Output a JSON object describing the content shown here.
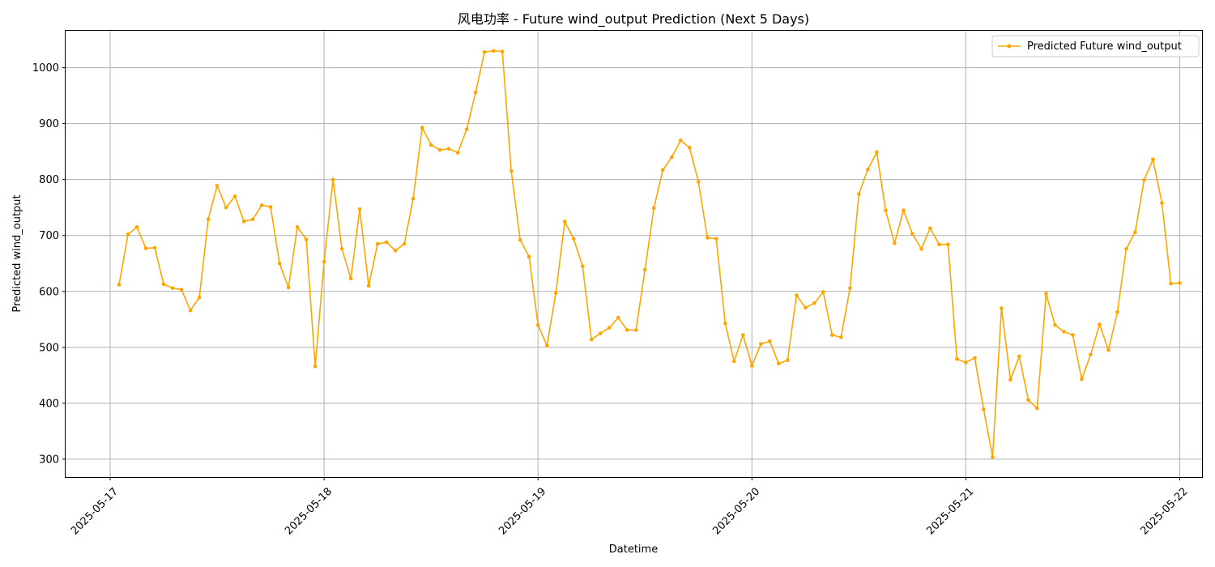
{
  "chart_data": {
    "type": "line",
    "title": "风电功率 - Future wind_output Prediction (Next 5 Days)",
    "xlabel": "Datetime",
    "ylabel": "Predicted wind_output",
    "x_ticks": [
      "2025-05-17",
      "2025-05-18",
      "2025-05-19",
      "2025-05-20",
      "2025-05-21",
      "2025-05-22"
    ],
    "y_ticks": [
      300,
      400,
      500,
      600,
      700,
      800,
      900,
      1000
    ],
    "ylim": [
      268,
      1066
    ],
    "xlim": [
      "2025-05-16T19:00",
      "2025-05-22T02:30"
    ],
    "grid": true,
    "legend_position": "top-right",
    "colors": {
      "line": "#ffa500",
      "grid": "#b0b0b0"
    },
    "series": [
      {
        "name": "Predicted Future wind_output",
        "start": "2025-05-17T01:00",
        "step_minutes": 60,
        "values": [
          612,
          702,
          715,
          677,
          678,
          613,
          606,
          603,
          566,
          589,
          729,
          789,
          750,
          770,
          725,
          729,
          754,
          751,
          650,
          607,
          715,
          693,
          466,
          653,
          800,
          676,
          623,
          747,
          610,
          685,
          688,
          673,
          685,
          766,
          893,
          862,
          853,
          855,
          848,
          890,
          956,
          1028,
          1030,
          1029,
          815,
          692,
          662,
          540,
          503,
          597,
          725,
          694,
          645,
          514,
          525,
          535,
          553,
          531,
          531,
          639,
          749,
          817,
          840,
          870,
          857,
          796,
          696,
          694,
          543,
          475,
          522,
          467,
          506,
          511,
          471,
          477,
          593,
          571,
          579,
          599,
          522,
          518,
          606,
          774,
          818,
          849,
          745,
          686,
          745,
          703,
          676,
          713,
          684,
          684,
          479,
          473,
          481,
          389,
          304,
          570,
          442,
          484,
          406,
          391,
          596,
          540,
          528,
          522,
          443,
          487,
          541,
          495,
          563,
          676,
          706,
          799,
          836,
          758,
          614,
          615
        ]
      }
    ]
  }
}
